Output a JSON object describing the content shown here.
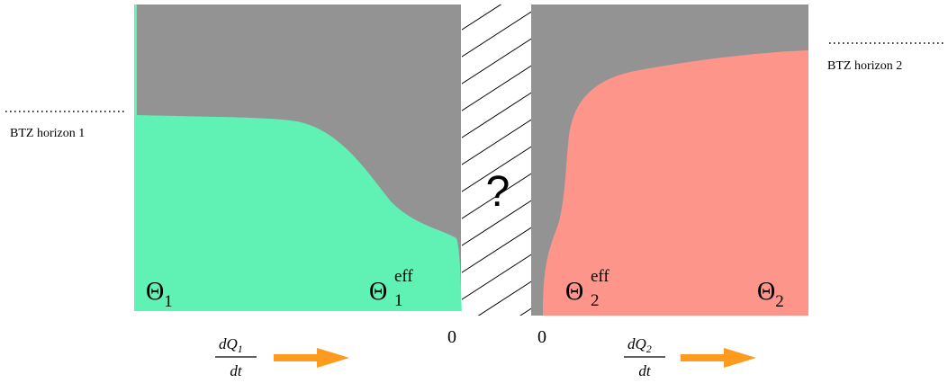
{
  "horizon_labels": {
    "left": "BTZ horizon 1",
    "right": "BTZ horizon 2"
  },
  "unknown_mark": "?",
  "left_panel": {
    "theta": "Θ",
    "theta_sub": "1",
    "theta_eff_sup": "eff",
    "theta_eff_sub": "1",
    "origin_tick": "0",
    "flux": {
      "numerator": "dQ",
      "numerator_sub": "1",
      "denominator": "dt"
    }
  },
  "right_panel": {
    "theta": "Θ",
    "theta_sub": "2",
    "theta_eff_sup": "eff",
    "theta_eff_sub": "2",
    "origin_tick": "0",
    "flux": {
      "numerator": "dQ",
      "numerator_sub": "2",
      "denominator": "dt"
    }
  },
  "colors": {
    "gray": "#939393",
    "green": "#60f2b5",
    "salmon": "#fd958b",
    "arrow": "#fc9b1e",
    "hatch": "#000000"
  },
  "icons": {
    "flux_arrow": "arrow-right-icon",
    "hatch": "hatched-region"
  }
}
